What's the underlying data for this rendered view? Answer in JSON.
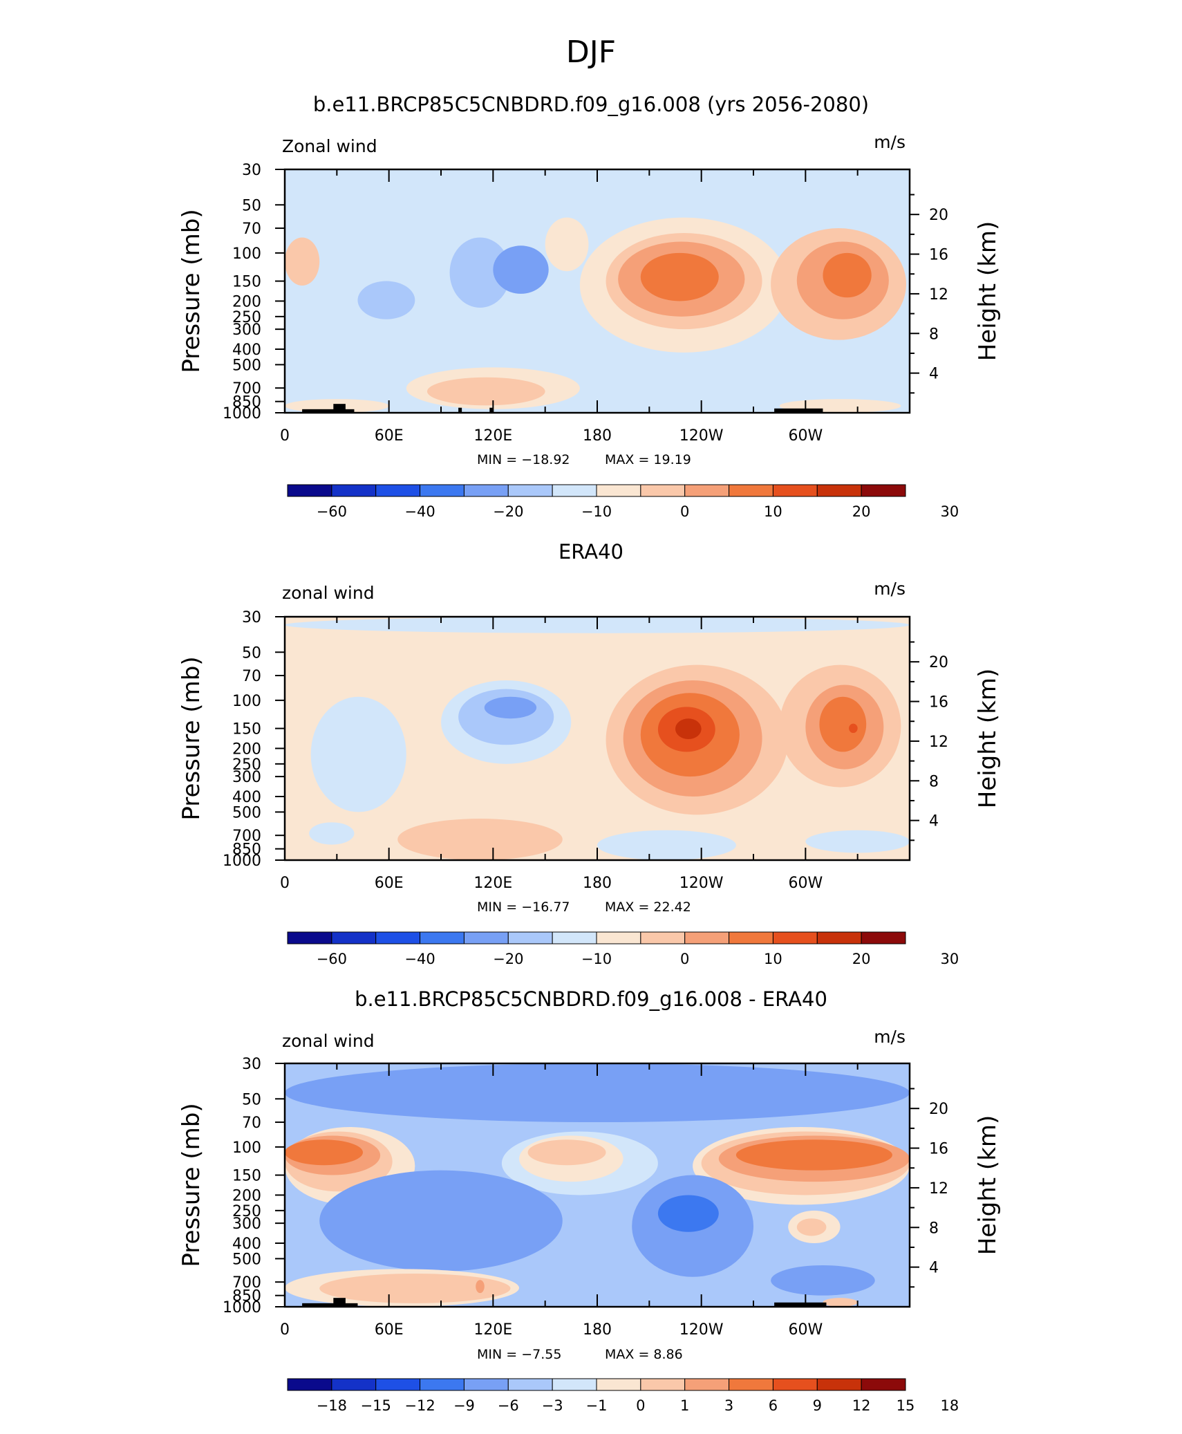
{
  "figure_title": "DJF",
  "colors": {
    "model_obs_palette": [
      "#0a0a8c",
      "#1432c8",
      "#1e50e6",
      "#3c78f0",
      "#78a0f5",
      "#aac8fa",
      "#d2e6fa",
      "#fae6d2",
      "#fac8aa",
      "#f5a078",
      "#f0783c",
      "#e6501e",
      "#c8320a",
      "#8c0a0a"
    ],
    "diff_palette": [
      "#0a0a8c",
      "#1432c8",
      "#1e50e6",
      "#3c78f0",
      "#78a0f5",
      "#aac8fa",
      "#d2e6fa",
      "#fae6d2",
      "#fac8aa",
      "#f5a078",
      "#f0783c",
      "#e6501e",
      "#c8320a",
      "#8c0a0a"
    ],
    "terrain": "#000000"
  },
  "chart_data": [
    {
      "type": "heatmap",
      "title": "b.e11.BRCP85C5CNBDRD.f09_g16.008 (yrs 2056-2080)",
      "variable": "Zonal wind",
      "units": "m/s",
      "ylabel": "Pressure  (mb)",
      "ylabel_right": "Height  (km)",
      "x_ticklabels": [
        "0",
        "60E",
        "120E",
        "180",
        "120W",
        "60W"
      ],
      "y_ticklabels": [
        "30",
        "50",
        "70",
        "100",
        "150",
        "200",
        "250",
        "300",
        "400",
        "500",
        "700",
        "850",
        "1000"
      ],
      "right_ticklabels": [
        "20",
        "16",
        "12",
        "8",
        "4"
      ],
      "min_label": "MIN =  −18.92",
      "max_label": "MAX =   19.19",
      "colorbar_labels": [
        "−60",
        "−40",
        "−20",
        "−10",
        "0",
        "10",
        "20",
        "30"
      ],
      "background_level": 6,
      "features": [
        {
          "lon": [
            0,
            20
          ],
          "p": [
            80,
            160
          ],
          "level": 8
        },
        {
          "lon": [
            150,
            175
          ],
          "p": [
            60,
            130
          ],
          "level": 7
        },
        {
          "lon": [
            95,
            130
          ],
          "p": [
            80,
            220
          ],
          "level": 5
        },
        {
          "lon": [
            120,
            152
          ],
          "p": [
            90,
            180
          ],
          "level": 4
        },
        {
          "lon": [
            42,
            75
          ],
          "p": [
            150,
            260
          ],
          "level": 5
        },
        {
          "lon": [
            170,
            290
          ],
          "p": [
            60,
            420
          ],
          "level": 7
        },
        {
          "lon": [
            185,
            275
          ],
          "p": [
            75,
            300
          ],
          "level": 8
        },
        {
          "lon": [
            192,
            265
          ],
          "p": [
            85,
            250
          ],
          "level": 9
        },
        {
          "lon": [
            205,
            250
          ],
          "p": [
            100,
            200
          ],
          "level": 10
        },
        {
          "lon": [
            280,
            358
          ],
          "p": [
            70,
            350
          ],
          "level": 8
        },
        {
          "lon": [
            295,
            348
          ],
          "p": [
            85,
            260
          ],
          "level": 9
        },
        {
          "lon": [
            310,
            338
          ],
          "p": [
            100,
            190
          ],
          "level": 10
        },
        {
          "lon": [
            70,
            170
          ],
          "p": [
            520,
            950
          ],
          "level": 7
        },
        {
          "lon": [
            82,
            150
          ],
          "p": [
            600,
            900
          ],
          "level": 8
        },
        {
          "lon": [
            0,
            60
          ],
          "p": [
            820,
            1000
          ],
          "level": 7
        },
        {
          "lon": [
            285,
            355
          ],
          "p": [
            820,
            1000
          ],
          "level": 7
        }
      ],
      "terrain_blocks": [
        {
          "lon": [
            10,
            40
          ],
          "p": [
            950,
            1000
          ]
        },
        {
          "lon": [
            28,
            35
          ],
          "p": [
            880,
            1000
          ]
        },
        {
          "lon": [
            100,
            102
          ],
          "p": [
            930,
            1000
          ]
        },
        {
          "lon": [
            118,
            120
          ],
          "p": [
            930,
            1000
          ]
        },
        {
          "lon": [
            282,
            310
          ],
          "p": [
            940,
            1000
          ]
        }
      ]
    },
    {
      "type": "heatmap",
      "title": "ERA40",
      "variable": "zonal wind",
      "units": "m/s",
      "ylabel": "Pressure  (mb)",
      "ylabel_right": "Height  (km)",
      "x_ticklabels": [
        "0",
        "60E",
        "120E",
        "180",
        "120W",
        "60W"
      ],
      "y_ticklabels": [
        "30",
        "50",
        "70",
        "100",
        "150",
        "200",
        "250",
        "300",
        "400",
        "500",
        "700",
        "850",
        "1000"
      ],
      "right_ticklabels": [
        "20",
        "16",
        "12",
        "8",
        "4"
      ],
      "min_label": "MIN =  −16.77",
      "max_label": "MAX =   22.42",
      "colorbar_labels": [
        "−60",
        "−40",
        "−20",
        "−10",
        "0",
        "10",
        "20",
        "30"
      ],
      "background_level": 7,
      "features": [
        {
          "lon": [
            0,
            360
          ],
          "p": [
            30,
            38
          ],
          "level": 6
        },
        {
          "lon": [
            15,
            70
          ],
          "p": [
            95,
            500
          ],
          "level": 6
        },
        {
          "lon": [
            90,
            165
          ],
          "p": [
            75,
            250
          ],
          "level": 6
        },
        {
          "lon": [
            100,
            155
          ],
          "p": [
            85,
            190
          ],
          "level": 5
        },
        {
          "lon": [
            115,
            145
          ],
          "p": [
            95,
            130
          ],
          "level": 4
        },
        {
          "lon": [
            185,
            290
          ],
          "p": [
            60,
            520
          ],
          "level": 8
        },
        {
          "lon": [
            195,
            275
          ],
          "p": [
            75,
            400
          ],
          "level": 9
        },
        {
          "lon": [
            205,
            262
          ],
          "p": [
            90,
            300
          ],
          "level": 10
        },
        {
          "lon": [
            215,
            248
          ],
          "p": [
            110,
            210
          ],
          "level": 11
        },
        {
          "lon": [
            225,
            240
          ],
          "p": [
            130,
            175
          ],
          "level": 12
        },
        {
          "lon": [
            285,
            355
          ],
          "p": [
            60,
            350
          ],
          "level": 8
        },
        {
          "lon": [
            300,
            345
          ],
          "p": [
            80,
            270
          ],
          "level": 9
        },
        {
          "lon": [
            308,
            335
          ],
          "p": [
            95,
            210
          ],
          "level": 10
        },
        {
          "lon": [
            325,
            330
          ],
          "p": [
            140,
            160
          ],
          "level": 11
        },
        {
          "lon": [
            65,
            160
          ],
          "p": [
            550,
            1000
          ],
          "level": 8
        },
        {
          "lon": [
            180,
            260
          ],
          "p": [
            650,
            1000
          ],
          "level": 6
        },
        {
          "lon": [
            300,
            360
          ],
          "p": [
            650,
            900
          ],
          "level": 6
        },
        {
          "lon": [
            14,
            40
          ],
          "p": [
            580,
            800
          ],
          "level": 6
        }
      ],
      "terrain_blocks": []
    },
    {
      "type": "heatmap",
      "title": "b.e11.BRCP85C5CNBDRD.f09_g16.008 - ERA40",
      "variable": "zonal wind",
      "units": "m/s",
      "ylabel": "Pressure  (mb)",
      "ylabel_right": "Height  (km)",
      "x_ticklabels": [
        "0",
        "60E",
        "120E",
        "180",
        "120W",
        "60W"
      ],
      "y_ticklabels": [
        "30",
        "50",
        "70",
        "100",
        "150",
        "200",
        "250",
        "300",
        "400",
        "500",
        "700",
        "850",
        "1000"
      ],
      "right_ticklabels": [
        "20",
        "16",
        "12",
        "8",
        "4"
      ],
      "min_label": "MIN =   −7.55",
      "max_label": "MAX =    8.86",
      "colorbar_labels": [
        "−18",
        "−15",
        "−12",
        "−9",
        "−6",
        "−3",
        "−1",
        "0",
        "1",
        "3",
        "6",
        "9",
        "12",
        "15",
        "18"
      ],
      "background_level": 5,
      "features": [
        {
          "lon": [
            0,
            360
          ],
          "p": [
            30,
            70
          ],
          "level": 4
        },
        {
          "lon": [
            0,
            75
          ],
          "p": [
            75,
            230
          ],
          "level": 7
        },
        {
          "lon": [
            0,
            62
          ],
          "p": [
            80,
            190
          ],
          "level": 8
        },
        {
          "lon": [
            0,
            55
          ],
          "p": [
            85,
            150
          ],
          "level": 9
        },
        {
          "lon": [
            0,
            45
          ],
          "p": [
            90,
            130
          ],
          "level": 10
        },
        {
          "lon": [
            235,
            360
          ],
          "p": [
            75,
            230
          ],
          "level": 7
        },
        {
          "lon": [
            240,
            360
          ],
          "p": [
            80,
            200
          ],
          "level": 8
        },
        {
          "lon": [
            250,
            360
          ],
          "p": [
            85,
            165
          ],
          "level": 9
        },
        {
          "lon": [
            260,
            350
          ],
          "p": [
            90,
            140
          ],
          "level": 10
        },
        {
          "lon": [
            125,
            215
          ],
          "p": [
            80,
            200
          ],
          "level": 6
        },
        {
          "lon": [
            135,
            195
          ],
          "p": [
            85,
            165
          ],
          "level": 7
        },
        {
          "lon": [
            140,
            185
          ],
          "p": [
            90,
            130
          ],
          "level": 8
        },
        {
          "lon": [
            20,
            160
          ],
          "p": [
            140,
            600
          ],
          "level": 4
        },
        {
          "lon": [
            200,
            270
          ],
          "p": [
            150,
            650
          ],
          "level": 4
        },
        {
          "lon": [
            215,
            250
          ],
          "p": [
            200,
            340
          ],
          "level": 3
        },
        {
          "lon": [
            290,
            320
          ],
          "p": [
            250,
            400
          ],
          "level": 7
        },
        {
          "lon": [
            295,
            312
          ],
          "p": [
            280,
            360
          ],
          "level": 8
        },
        {
          "lon": [
            0,
            135
          ],
          "p": [
            580,
            1000
          ],
          "level": 7
        },
        {
          "lon": [
            20,
            130
          ],
          "p": [
            620,
            950
          ],
          "level": 8
        },
        {
          "lon": [
            110,
            115
          ],
          "p": [
            680,
            820
          ],
          "level": 9
        },
        {
          "lon": [
            280,
            340
          ],
          "p": [
            550,
            850
          ],
          "level": 4
        },
        {
          "lon": [
            310,
            330
          ],
          "p": [
            880,
            1000
          ],
          "level": 8
        }
      ],
      "terrain_blocks": [
        {
          "lon": [
            10,
            42
          ],
          "p": [
            950,
            1000
          ]
        },
        {
          "lon": [
            28,
            35
          ],
          "p": [
            880,
            1000
          ]
        },
        {
          "lon": [
            282,
            312
          ],
          "p": [
            940,
            1000
          ]
        }
      ]
    }
  ]
}
